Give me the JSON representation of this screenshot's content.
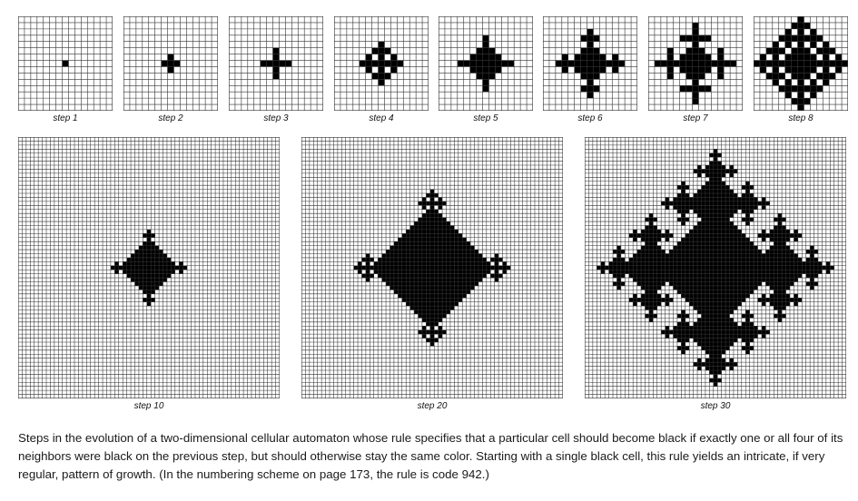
{
  "rule": {
    "become_black_if_black_neighbors": [
      1,
      4
    ],
    "neighborhood": "von-neumann-4",
    "seed": "single-black-cell"
  },
  "panels": [
    {
      "label": "step 1",
      "step": 1
    },
    {
      "label": "step 2",
      "step": 2
    },
    {
      "label": "step 3",
      "step": 3
    },
    {
      "label": "step 4",
      "step": 4
    },
    {
      "label": "step 5",
      "step": 5
    },
    {
      "label": "step 6",
      "step": 6
    },
    {
      "label": "step 7",
      "step": 7
    },
    {
      "label": "step 8",
      "step": 8
    },
    {
      "label": "step 10",
      "step": 10
    },
    {
      "label": "step 20",
      "step": 20
    },
    {
      "label": "step 30",
      "step": 30
    }
  ],
  "colors": {
    "cell_black": "#000000",
    "cell_white": "#ffffff",
    "grid_line": "#333333"
  },
  "caption": "Steps in the evolution of a two-dimensional cellular automaton whose rule specifies that a particular cell should become black if exactly one or all four of its neighbors were black on the previous step, but should otherwise stay the same color. Starting with a single black cell, this rule yields an intricate, if very regular, pattern of growth. (In the numbering scheme on page 173, the rule is code 942.)"
}
